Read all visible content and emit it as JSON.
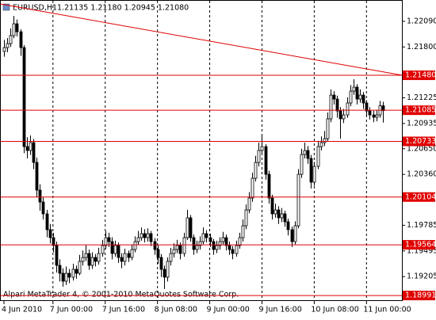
{
  "chart_data": {
    "type": "candlestick",
    "title": "EURUSD,H1",
    "quote": "1.21135 1.21180 1.20945 1.21080",
    "footer": "Alpari MetaTrader 4, © 2001-2010 MetaQuotes Software Corp.",
    "categories": [
      "4 Jun 2010",
      null,
      null,
      null,
      null,
      null,
      null,
      null,
      null,
      null,
      null,
      null,
      null,
      null,
      null,
      "7 Jun 00:00",
      null,
      null,
      null,
      null,
      null,
      null,
      null,
      null,
      null,
      null,
      null,
      null,
      null,
      null,
      null,
      "7 Jun 16:00",
      null,
      null,
      null,
      null,
      null,
      null,
      null,
      null,
      null,
      null,
      null,
      null,
      null,
      null,
      null,
      "8 Jun 08:00",
      null,
      null,
      null,
      null,
      null,
      null,
      null,
      null,
      null,
      null,
      null,
      null,
      null,
      null,
      null,
      "9 Jun 00:00",
      null,
      null,
      null,
      null,
      null,
      null,
      null,
      null,
      null,
      null,
      null,
      null,
      null,
      null,
      null,
      "9 Jun 16:00",
      null,
      null,
      null,
      null,
      null,
      null,
      null,
      null,
      null,
      null,
      null,
      null,
      null,
      null,
      null,
      "10 Jun 08:00",
      null,
      null,
      null,
      null,
      null,
      null,
      null,
      null,
      null,
      null,
      null,
      null,
      null,
      null,
      null,
      "11 Jun 00:00",
      null,
      null,
      null,
      null,
      null
    ],
    "open": [
      1.2175,
      1.21793,
      1.21838,
      1.21928,
      1.22062,
      1.21972,
      1.21793,
      1.20674,
      1.2063,
      1.20719,
      1.20495,
      1.20182,
      1.20048,
      1.19914,
      1.19735,
      1.19645,
      1.19556,
      1.19332,
      1.19242,
      1.19153,
      1.19242,
      1.19198,
      1.19287,
      1.19242,
      1.19377,
      1.19421,
      1.19466,
      1.19332,
      1.19421,
      1.19377,
      1.19466,
      1.19556,
      1.19645,
      1.196,
      1.19466,
      1.19556,
      1.19421,
      1.19377,
      1.19466,
      1.19421,
      1.19511,
      1.196,
      1.19645,
      1.1969,
      1.19645,
      1.1969,
      1.196,
      1.19511,
      1.19421,
      1.19287,
      1.19198,
      1.19377,
      1.19466,
      1.19511,
      1.19556,
      1.19466,
      1.19645,
      1.19869,
      1.19645,
      1.19511,
      1.19556,
      1.196,
      1.1969,
      1.19645,
      1.196,
      1.19511,
      1.19556,
      1.196,
      1.19645,
      1.19556,
      1.19511,
      1.19466,
      1.19556,
      1.19645,
      1.19779,
      1.19958,
      1.20093,
      1.20316,
      1.20495,
      1.2063,
      1.20674,
      1.20361,
      1.20093,
      1.19914,
      1.19958,
      1.19869,
      1.19914,
      1.19824,
      1.19735,
      1.196,
      1.19779,
      1.20361,
      1.20585,
      1.2063,
      1.2054,
      1.20272,
      1.20451,
      1.20674,
      1.20719,
      1.20764,
      1.20988,
      1.21256,
      1.21211,
      1.21077,
      1.20988,
      1.21032,
      1.21167,
      1.21301,
      1.21346,
      1.21211,
      1.21256,
      1.21167,
      1.21077,
      1.21032,
      1.21006,
      1.21032,
      1.21135
    ],
    "high": [
      1.2188,
      1.219,
      1.2201,
      1.22151,
      1.2211,
      1.22,
      1.2182,
      1.2078,
      1.208,
      1.2076,
      1.2055,
      1.2025,
      1.201,
      1.1996,
      1.198,
      1.197,
      1.196,
      1.194,
      1.193,
      1.1932,
      1.1929,
      1.1935,
      1.1933,
      1.1945,
      1.195,
      1.1956,
      1.1951,
      1.1948,
      1.1946,
      1.1953,
      1.1962,
      1.1972,
      1.197,
      1.1965,
      1.1961,
      1.1959,
      1.1947,
      1.1952,
      1.195,
      1.1957,
      1.1966,
      1.1972,
      1.1976,
      1.1974,
      1.1975,
      1.1972,
      1.1964,
      1.1956,
      1.1946,
      1.1933,
      1.1942,
      1.1953,
      1.1958,
      1.1962,
      1.1959,
      1.197,
      1.1996,
      1.199,
      1.1968,
      1.1961,
      1.1966,
      1.1976,
      1.1973,
      1.1969,
      1.1963,
      1.1961,
      1.1965,
      1.1971,
      1.1968,
      1.196,
      1.1955,
      1.1961,
      1.197,
      1.1985,
      1.2002,
      1.2016,
      1.2038,
      1.2057,
      1.2072,
      1.20809,
      1.207,
      1.204,
      1.2013,
      1.2003,
      1.2,
      1.1998,
      1.1995,
      1.1986,
      1.1977,
      1.1983,
      1.2042,
      1.2065,
      1.2072,
      1.2068,
      1.2058,
      1.205,
      1.2074,
      1.2079,
      1.2085,
      1.2106,
      1.2132,
      1.213,
      1.2125,
      1.2112,
      1.211,
      1.2123,
      1.2137,
      1.21435,
      1.2138,
      1.2132,
      1.2129,
      1.212,
      1.2112,
      1.2108,
      1.2109,
      1.2119,
      1.2118
    ],
    "low": [
      1.2169,
      1.2174,
      1.218,
      1.219,
      1.2192,
      1.217,
      1.206,
      1.2054,
      1.2058,
      1.2042,
      1.201,
      1.1995,
      1.1985,
      1.1965,
      1.1958,
      1.1948,
      1.1925,
      1.1915,
      1.1909,
      1.1911,
      1.1913,
      1.1916,
      1.1918,
      1.1922,
      1.1933,
      1.1938,
      1.1928,
      1.1929,
      1.1932,
      1.1934,
      1.1943,
      1.1952,
      1.1954,
      1.194,
      1.1943,
      1.1936,
      1.193,
      1.1933,
      1.1937,
      1.1939,
      1.1948,
      1.1956,
      1.1961,
      1.1959,
      1.196,
      1.1955,
      1.1945,
      1.1935,
      1.192,
      1.19064,
      1.1915,
      1.1933,
      1.1942,
      1.1947,
      1.194,
      1.1943,
      1.1962,
      1.196,
      1.1945,
      1.1947,
      1.1951,
      1.1957,
      1.1959,
      1.1954,
      1.1945,
      1.1947,
      1.1951,
      1.1956,
      1.195,
      1.1945,
      1.194,
      1.1943,
      1.1952,
      1.196,
      1.1974,
      1.1992,
      1.2005,
      1.2028,
      1.2045,
      1.2058,
      1.203,
      1.2003,
      1.1985,
      1.1987,
      1.198,
      1.1982,
      1.1977,
      1.1967,
      1.1954,
      1.1957,
      1.1975,
      1.2032,
      1.2054,
      1.2048,
      1.202,
      1.2023,
      1.2042,
      1.2063,
      1.2068,
      1.2073,
      1.2095,
      1.2115,
      1.21,
      1.20764,
      1.2094,
      1.21,
      1.2113,
      1.2126,
      1.2115,
      1.2117,
      1.211,
      1.2102,
      1.2098,
      1.2095,
      1.2096,
      1.21,
      1.20945
    ],
    "close": [
      1.21793,
      1.21838,
      1.21928,
      1.22062,
      1.21972,
      1.21793,
      1.20674,
      1.2063,
      1.20719,
      1.20495,
      1.20182,
      1.20048,
      1.19914,
      1.19735,
      1.19645,
      1.19556,
      1.19332,
      1.19242,
      1.19153,
      1.19242,
      1.19198,
      1.19287,
      1.19242,
      1.19377,
      1.19421,
      1.19466,
      1.19332,
      1.19421,
      1.19377,
      1.19466,
      1.19556,
      1.19645,
      1.196,
      1.19466,
      1.19556,
      1.19421,
      1.19377,
      1.19466,
      1.19421,
      1.19511,
      1.196,
      1.19645,
      1.1969,
      1.19645,
      1.1969,
      1.196,
      1.19511,
      1.19421,
      1.19287,
      1.19198,
      1.19377,
      1.19466,
      1.19511,
      1.19556,
      1.19466,
      1.19645,
      1.19869,
      1.19645,
      1.19511,
      1.19556,
      1.196,
      1.1969,
      1.19645,
      1.196,
      1.19511,
      1.19556,
      1.196,
      1.19645,
      1.19556,
      1.19511,
      1.19466,
      1.19556,
      1.19645,
      1.19779,
      1.19958,
      1.20093,
      1.20316,
      1.20495,
      1.2063,
      1.20674,
      1.20361,
      1.20093,
      1.19914,
      1.19958,
      1.19869,
      1.19914,
      1.19824,
      1.19735,
      1.196,
      1.19779,
      1.20361,
      1.20585,
      1.2063,
      1.2054,
      1.20272,
      1.20451,
      1.20674,
      1.20719,
      1.20764,
      1.20988,
      1.21256,
      1.21211,
      1.21077,
      1.20988,
      1.21032,
      1.21167,
      1.21301,
      1.21346,
      1.21211,
      1.21256,
      1.21167,
      1.21077,
      1.21032,
      1.21006,
      1.21032,
      1.21135,
      1.2108
    ],
    "ylim": [
      1.18947,
      1.22286
    ],
    "yticks": [
      {
        "value": 1.2209,
        "label": "1.22090"
      },
      {
        "value": 1.218,
        "label": "1.21800"
      },
      {
        "value": 1.21225,
        "label": "1.21225"
      },
      {
        "value": 1.20935,
        "label": "1.20935"
      },
      {
        "value": 1.2065,
        "label": "1.20650"
      },
      {
        "value": 1.2036,
        "label": "1.20360"
      },
      {
        "value": 1.19785,
        "label": "1.19785"
      },
      {
        "value": 1.19495,
        "label": "1.19495"
      },
      {
        "value": 1.19205,
        "label": "1.19205"
      }
    ],
    "levels": [
      {
        "value": 1.2148,
        "label": "1.21480"
      },
      {
        "value": 1.21085,
        "label": "1.21085"
      },
      {
        "value": 1.20733,
        "label": "1.20733"
      },
      {
        "value": 1.20104,
        "label": "1.20104"
      },
      {
        "value": 1.19564,
        "label": "1.19564"
      },
      {
        "value": 1.18991,
        "label": "1.18991"
      }
    ],
    "level_color": "#e00000",
    "trendline": {
      "start": 1.22286,
      "end": 1.2148
    },
    "grid": true
  }
}
